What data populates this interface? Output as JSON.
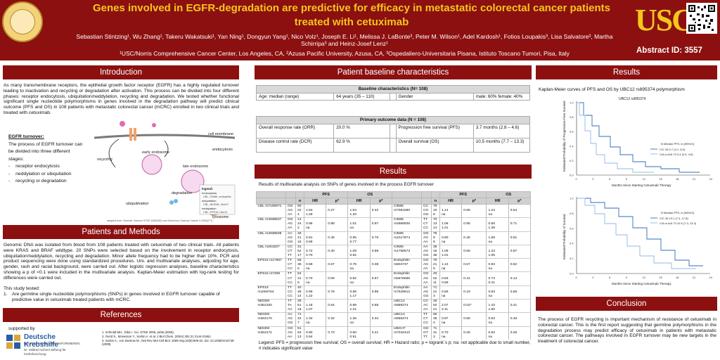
{
  "header": {
    "title": "Genes involved in EGFR-degradation are predictive for efficacy in metastatic colorectal cancer patients treated with cetuximab",
    "authors": "Sebastian Stintzing¹, Wu Zhang¹, Takeru Wakatsuki¹, Yan Ning¹, Dongyun Yang¹, Nico Volz¹, Joseph E. Li¹, Melissa J. LaBonte³, Peter M. Wilson¹, Adel Kardosh¹, Fotios Loupakis³, Lisa Salvatore³, Martha Schirripa³ and Heinz-Josef Lenz¹",
    "affiliations": "¹USC/Norris Comprehensive Cancer Center, Los Angeles, CA, ²Azusa Pacific University, Azusa, CA, ³Ospedaliero-Universitaria Pisana, Istituto Toscano Tumori, Pisa, Italy",
    "logo_text": "USC",
    "abstract_id": "Abstract ID: 3557"
  },
  "sections": {
    "introduction": "Introduction",
    "patients_methods": "Patients and Methods",
    "references": "References",
    "baseline": "Patient baseline characteristics",
    "results_mid": "Results",
    "results_right": "Results",
    "conclusion": "Conclusion"
  },
  "introduction": {
    "text": "As many transmembrane receptors, the epithelial growth factor receptor (EGFR) has a highly regulated turnover leading to inactivation and recycling or degradation after activation. This process can be divided into four different phases: receptor endocytosis, ubiquitation/neddylation, recycling and degradation. We tested whether functional significant single nucleotide polymorphisms in genes involved in the degradation pathway will predict clinical outcome (PFS and OS) in 108 patients with metastatic colorectal cancer (mCRC) enrolled in two clinical trials and treated with cetuximab.",
    "turnover_heading": "EGFR turnover:",
    "turnover_text": "The process of EGFR turnover can be divided into three different stages:",
    "stages": [
      "receptor endocytosis",
      "neddylation or ubiquitation",
      "recycling or degradation"
    ],
    "diagram_labels": {
      "cell_membrane": "cell membrane",
      "endocytosis": "endocytosis",
      "recycling": "recycling",
      "early_endosome": "early endosome",
      "late_endosome": "late endosome",
      "ubiquitination": "ubiquitination",
      "degradation": "degradation",
      "lysosome": "lysosome",
      "legend_title": "legend:",
      "legend_endocytosis": "endocytosis",
      "legend_endo_genes": "CBL, CIN85, endophilin",
      "legend_ubiquitation": "ubiquitation",
      "legend_ubi_genes": "CBL, NEDD8, UbcH7",
      "legend_neddylation": "neddylation",
      "legend_nedd_genes": "CBL, EPS15, Ubc12",
      "source": "adapted from: Schmidt, Science STKE 2006(362) and Sorkin/von Zastrow, Nature 4 2009(277)"
    }
  },
  "patients_methods": {
    "text": "Genomic DNA was isolated from blood from 108 patients treated with cetuximab of two clinical trials. All patients were KRAS and BRAF wildtype. 20 SNPs were selected based on the involvement in receptor endocytosis, ubiquitation/neddylation, recycling and degradation. Minor allele frequency had to be higher than 10%. PCR and product sequencing were done using standardized procedures. Uni- and multivariate analyses, adjusting for age, gender, rash and racial background, were carried out. After logistic regression analyses, baseline characteristics showing a p of <0.1 were included in the multivariate analysis. Kaplan-Meier estimation with log-rank testing for differences were carried out.",
    "design_heading": "This study tested:",
    "design_item": "Are germline single nucleotide polymorphisms (SNPs) in genes involved in EGFR turnover capable of predictive value in cetuximab treated patients with mCRC."
  },
  "references": {
    "supported_by": "supported by",
    "sponsor_name": "Deutsche Krebshilfe",
    "sponsor_tagline": "HELFEN. FORSCHEN. INFORMIEREN.",
    "sponsor_foundation": "Dr. Mildred Scheel Stiftung für Krebsforschung",
    "items": [
      "1.   Schmidt MH., Dikic I. Sci. STKE 2006, pe56 (2006).",
      "2.   Ovrid S., Mosesson Y., Sorkin A. et al. J Biol Chem. (2004) 281:21 2144-21651.",
      "3.   Sorkin A., von Zastrow M., Nat Rev Mol Cell Biol. 2009 Sep;10(9):609-22. doi: 10.1038/nrm2748 (2009)"
    ]
  },
  "baseline": {
    "table_title": "Baseline characteristics (N= 108)",
    "rows": [
      {
        "label": "Age: median (range)",
        "value": "64 years (35 – 110)",
        "label2": "Gender",
        "value2": "male: 60% female: 40%"
      }
    ],
    "outcome_title": "Primary outcome data (N = 108)",
    "outcome_rows": [
      {
        "label": "Overall response rate (ORR)",
        "value": "20.0 %",
        "label2": "Progression free survival (PFS)",
        "value2": "3.7 months (2.8 – 4.6)"
      },
      {
        "label": "Disease control rate (DCR)",
        "value": "62.9 %",
        "label2": "Overall survival (OS)",
        "value2": "10.5 months (7.7 – 13.3)"
      }
    ]
  },
  "results_mid": {
    "caption": "Results of multivariate analysis on SNPs of genes involved in the process EGFR turnover",
    "col_pfs": "PFS",
    "col_os": "OS",
    "sub_headers": [
      "n",
      "HR",
      "p*",
      "HR",
      "p*"
    ],
    "left_groups": [
      {
        "gene": "CBL rs7105971",
        "genos": [
          "GG",
          "AG",
          "AA"
        ],
        "n": [
          "50",
          "22",
          "4"
        ],
        "hr": [
          "",
          "1.54",
          "1.29"
        ],
        "p": [
          "",
          "0.27",
          ""
        ],
        "oshr": [
          "",
          "1.54",
          "1.20"
        ],
        "osp": [
          "",
          "0.42",
          ""
        ]
      },
      {
        "gene": "CBL rs4938637",
        "genos": [
          "GG",
          "AG",
          "AA"
        ],
        "n": [
          "14",
          "24",
          "2"
        ],
        "hr": [
          "",
          "0.96",
          "na"
        ],
        "p": [
          "",
          "0.88",
          ""
        ],
        "oshr": [
          "",
          "1.01",
          "na"
        ],
        "osp": [
          "",
          "0.97",
          ""
        ]
      },
      {
        "gene": "CBL rs4938638",
        "genos": [
          "AA",
          "AG",
          "GG"
        ],
        "n": [
          "46",
          "41",
          "16"
        ],
        "hr": [
          "",
          "0.91",
          "0.69"
        ],
        "p": [
          "",
          "0.45",
          ""
        ],
        "oshr": [
          "",
          "0.95",
          "0.77"
        ],
        "osp": [
          "",
          "0.76",
          ""
        ]
      },
      {
        "gene": "CBL rs251837",
        "genos": [
          "CC",
          "CT",
          "TT"
        ],
        "n": [
          "31",
          "52",
          "17"
        ],
        "hr": [
          "",
          "0.72",
          "0.70"
        ],
        "p": [
          "",
          "0.40",
          ""
        ],
        "oshr": [
          "",
          "1.09",
          "0.92"
        ],
        "osp": [
          "",
          "0.89",
          ""
        ]
      },
      {
        "gene": "EPS15 rs17567",
        "genos": [
          "TT",
          "CT",
          "CC"
        ],
        "n": [
          "65",
          "35",
          "5"
        ],
        "hr": [
          "",
          "0.69",
          "na"
        ],
        "p": [
          "",
          "0.67",
          ""
        ],
        "oshr": [
          "",
          "0.79",
          "na"
        ],
        "osp": [
          "",
          "0.38",
          ""
        ]
      },
      {
        "gene": "EPS15 rs7308",
        "genos": [
          "TT",
          "CT",
          "CC"
        ],
        "n": [
          "64",
          "31",
          "6"
        ],
        "hr": [
          "",
          "0.70",
          "na"
        ],
        "p": [
          "",
          "0.09",
          ""
        ],
        "oshr": [
          "",
          "0.82",
          "na"
        ],
        "osp": [
          "",
          "0.67",
          ""
        ]
      },
      {
        "gene": "EPS15 rs1060754",
        "genos": [
          "TT",
          "CC",
          "CC"
        ],
        "n": [
          "40",
          "48",
          "14"
        ],
        "hr": [
          "",
          "0.99",
          "1.22"
        ],
        "p": [
          "",
          "0.79",
          ""
        ],
        "oshr": [
          "",
          "0.98",
          "1.17"
        ],
        "osp": [
          "",
          "0.89",
          ""
        ]
      },
      {
        "gene": "NEDD8 rs363183",
        "genos": [
          "TT",
          "TA",
          "AA"
        ],
        "n": [
          "28",
          "51",
          "18"
        ],
        "hr": [
          "",
          "1.18",
          "1.07"
        ],
        "p": [
          "",
          "0.64",
          ""
        ],
        "oshr": [
          "",
          "0.89",
          "1.21"
        ],
        "osp": [
          "",
          "0.68",
          ""
        ]
      },
      {
        "gene": "NEDD8 rs363170",
        "genos": [
          "AA",
          "AG",
          "GG"
        ],
        "n": [
          "71",
          "22",
          "7"
        ],
        "hr": [
          "",
          "1.34",
          "na"
        ],
        "p": [
          "",
          "0.32",
          ""
        ],
        "oshr": [
          "",
          "1.36",
          "na"
        ],
        "osp": [
          "",
          "0.34",
          ""
        ]
      },
      {
        "gene": "NEDD8 rs363172",
        "genos": [
          "GG",
          "AG",
          "AA"
        ],
        "n": [
          "51",
          "53",
          "13"
        ],
        "hr": [
          "",
          "0.80",
          "0.94"
        ],
        "p": [
          "",
          "0.73",
          ""
        ],
        "oshr": [
          "",
          "0.60",
          "0.91"
        ],
        "osp": [
          "",
          "0.21",
          ""
        ]
      }
    ],
    "right_groups": [
      {
        "gene": "CIN85 rs7051590",
        "genos": [
          "CC",
          "CG",
          "GG"
        ],
        "n": [
          "79",
          "10",
          "9"
        ],
        "hr": [
          "",
          "1.14",
          "na"
        ],
        "p": [
          "",
          "0.66",
          ""
        ],
        "oshr": [
          "",
          "1.24",
          "na"
        ],
        "osp": [
          "",
          "0.54",
          ""
        ]
      },
      {
        "gene": "CIN85 rs4958835",
        "genos": [
          "TT",
          "CT",
          "CC"
        ],
        "n": [
          "70",
          "13",
          "14"
        ],
        "hr": [
          "",
          "1.06",
          "1.01"
        ],
        "p": [
          "",
          "0.95",
          ""
        ],
        "oshr": [
          "",
          "0.56",
          "1.39"
        ],
        "osp": [
          "",
          "0.71",
          ""
        ]
      },
      {
        "gene": "CIN85 rs1017874",
        "genos": [
          "GG",
          "AG",
          "AA"
        ],
        "n": [
          "76",
          "9",
          "9"
        ],
        "hr": [
          "",
          "0.80",
          "na"
        ],
        "p": [
          "",
          "0.46",
          ""
        ],
        "oshr": [
          "",
          "1.59",
          "na"
        ],
        "osp": [
          "",
          "0.81",
          ""
        ]
      },
      {
        "gene": "CIN85 rs1758573",
        "genos": [
          "AA",
          "AG",
          "GG"
        ],
        "n": [
          "35",
          "15",
          "36"
        ],
        "hr": [
          "",
          "1.09",
          "1.01"
        ],
        "p": [
          "",
          "0.56",
          ""
        ],
        "oshr": [
          "",
          "1.23",
          "1.05"
        ],
        "osp": [
          "",
          "0.87",
          ""
        ]
      },
      {
        "gene": "Endophilin rs804737",
        "genos": [
          "GG",
          "AG",
          "AA"
        ],
        "n": [
          "70",
          "21",
          "9"
        ],
        "hr": [
          "",
          "1.13",
          "na"
        ],
        "p": [
          "",
          "0.67",
          ""
        ],
        "oshr": [
          "",
          "0.93",
          "na"
        ],
        "osp": [
          "",
          "0.82",
          ""
        ]
      },
      {
        "gene": "Endophilin rs6578696",
        "genos": [
          "GG",
          "AG",
          "AA"
        ],
        "n": [
          "40",
          "52",
          "11"
        ],
        "hr": [
          "",
          "0.83",
          "0.59"
        ],
        "p": [
          "",
          "0.41",
          ""
        ],
        "oshr": [
          "",
          "0.73",
          "0.41"
        ],
        "osp": [
          "",
          "0.14",
          ""
        ]
      },
      {
        "gene": "Endophilin rs7529812",
        "genos": [
          "AA",
          "AG",
          "GG"
        ],
        "n": [
          "71",
          "21",
          "3"
        ],
        "hr": [
          "",
          "0.69",
          "na"
        ],
        "p": [
          "",
          "0.19",
          ""
        ],
        "oshr": [
          "",
          "0.83",
          "na"
        ],
        "osp": [
          "",
          "0.56",
          ""
        ]
      },
      {
        "gene": "UBC12 rs895374",
        "genos": [
          "CC",
          "AC",
          "AA"
        ],
        "n": [
          "26",
          "52",
          "21"
        ],
        "hr": [
          "",
          "2.07",
          "2.11"
        ],
        "p": [
          "",
          "0.02*",
          ""
        ],
        "oshr": [
          "",
          "1.43",
          "1.60"
        ],
        "osp": [
          "",
          "0.41",
          ""
        ]
      },
      {
        "gene": "UBC12 rs955374",
        "genos": [
          "TT",
          "CT",
          "CC"
        ],
        "n": [
          "56",
          "35",
          "4"
        ],
        "hr": [
          "",
          "0.97",
          "na"
        ],
        "p": [
          "",
          "0.90",
          ""
        ],
        "oshr": [
          "",
          "0.83",
          "na"
        ],
        "osp": [
          "",
          "0.48",
          ""
        ]
      },
      {
        "gene": "UBCH7 rs7042410",
        "genos": [
          "GG",
          "GT",
          "TT"
        ],
        "n": [
          "71",
          "31",
          "3"
        ],
        "hr": [
          "",
          "0.70",
          "na"
        ],
        "p": [
          "",
          "0.25",
          ""
        ],
        "oshr": [
          "",
          "0.93",
          "na"
        ],
        "osp": [
          "",
          "0.25",
          ""
        ]
      }
    ],
    "legend": "Legend: PFS = progression free survival; OS = overall survival; HR = Hazard ratio; p = logrank´s p; na: not applicable due to small number, # indicates significant value"
  },
  "results_right": {
    "caption": "Kaplan-Meier curves of PFS and OS by UBC12 rs895374 polymorphism",
    "km1_title": "UBC12 rs895374",
    "km_xlabel": "Months Since Starting Cetuximab Therapy",
    "km1_ylabel": "Estimated Probability of Progression-Free Survival",
    "km2_ylabel": "Estimated Probability of Survival",
    "km1_legend": [
      "N  Median PFS, m (95%CI)",
      "C/C    26  5.7 (4.1, 8.0)",
      "C/A or A/A  73  3.4 (2.5, 4.6)"
    ],
    "km2_legend": [
      "N  Median PFS, m (95%CI)",
      "C/C    26  13.1 (7.4, 17.8)",
      "C/A or A/A  73  10.5 (7.3, 13.3)"
    ],
    "km_xticks": [
      "0",
      "3",
      "6",
      "9",
      "12",
      "15",
      "18",
      "21",
      "24"
    ],
    "km_yticks": [
      "0.0",
      "0.2",
      "0.4",
      "0.6",
      "0.8",
      "1.0"
    ],
    "km_series_colors": [
      "#2f6db5",
      "#8fb8e8"
    ]
  },
  "conclusion": {
    "text": "The process of EGFR recycling is important mechanism of resistance of cetuximab in colorectal cancer. This is the first report suggesting that germline polymorphisms in the degradation process may predict efficacy of cetuximab in patients with metastatic colorectal cancer. The pathways involved in EGFR turnover may be new targets in the treatment of colorectal cancer."
  },
  "colors": {
    "header_bg": "#8c1010",
    "title": "#f4c61c",
    "section_bg": "#8c1010"
  }
}
